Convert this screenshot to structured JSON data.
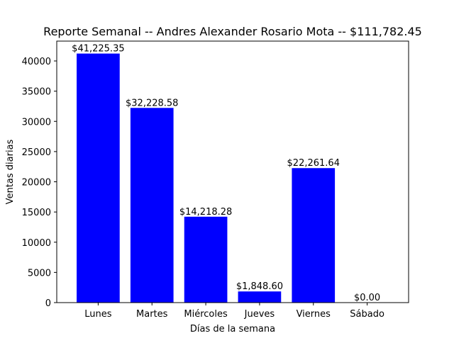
{
  "chart_data": {
    "type": "bar",
    "title": "Reporte Semanal -- Andres Alexander Rosario Mota  -- $111,782.45",
    "xlabel": "Días de la semana",
    "ylabel": "Ventas diarias",
    "categories": [
      "Lunes",
      "Martes",
      "Miércoles",
      "Jueves",
      "Viernes",
      "Sábado"
    ],
    "values": [
      41225.35,
      32228.58,
      14218.28,
      1848.6,
      22261.64,
      0.0
    ],
    "data_labels": [
      "$41,225.35",
      "$32,228.58",
      "$14,218.28",
      "$1,848.60",
      "$22,261.64",
      "$0.00"
    ],
    "ylim": [
      0,
      43286.62
    ],
    "yticks": [
      0,
      5000,
      10000,
      15000,
      20000,
      25000,
      30000,
      35000,
      40000
    ],
    "ytick_labels": [
      "0",
      "5000",
      "10000",
      "15000",
      "20000",
      "25000",
      "30000",
      "35000",
      "40000"
    ],
    "bar_color": "#0000ff",
    "grid": false,
    "legend": "none"
  }
}
